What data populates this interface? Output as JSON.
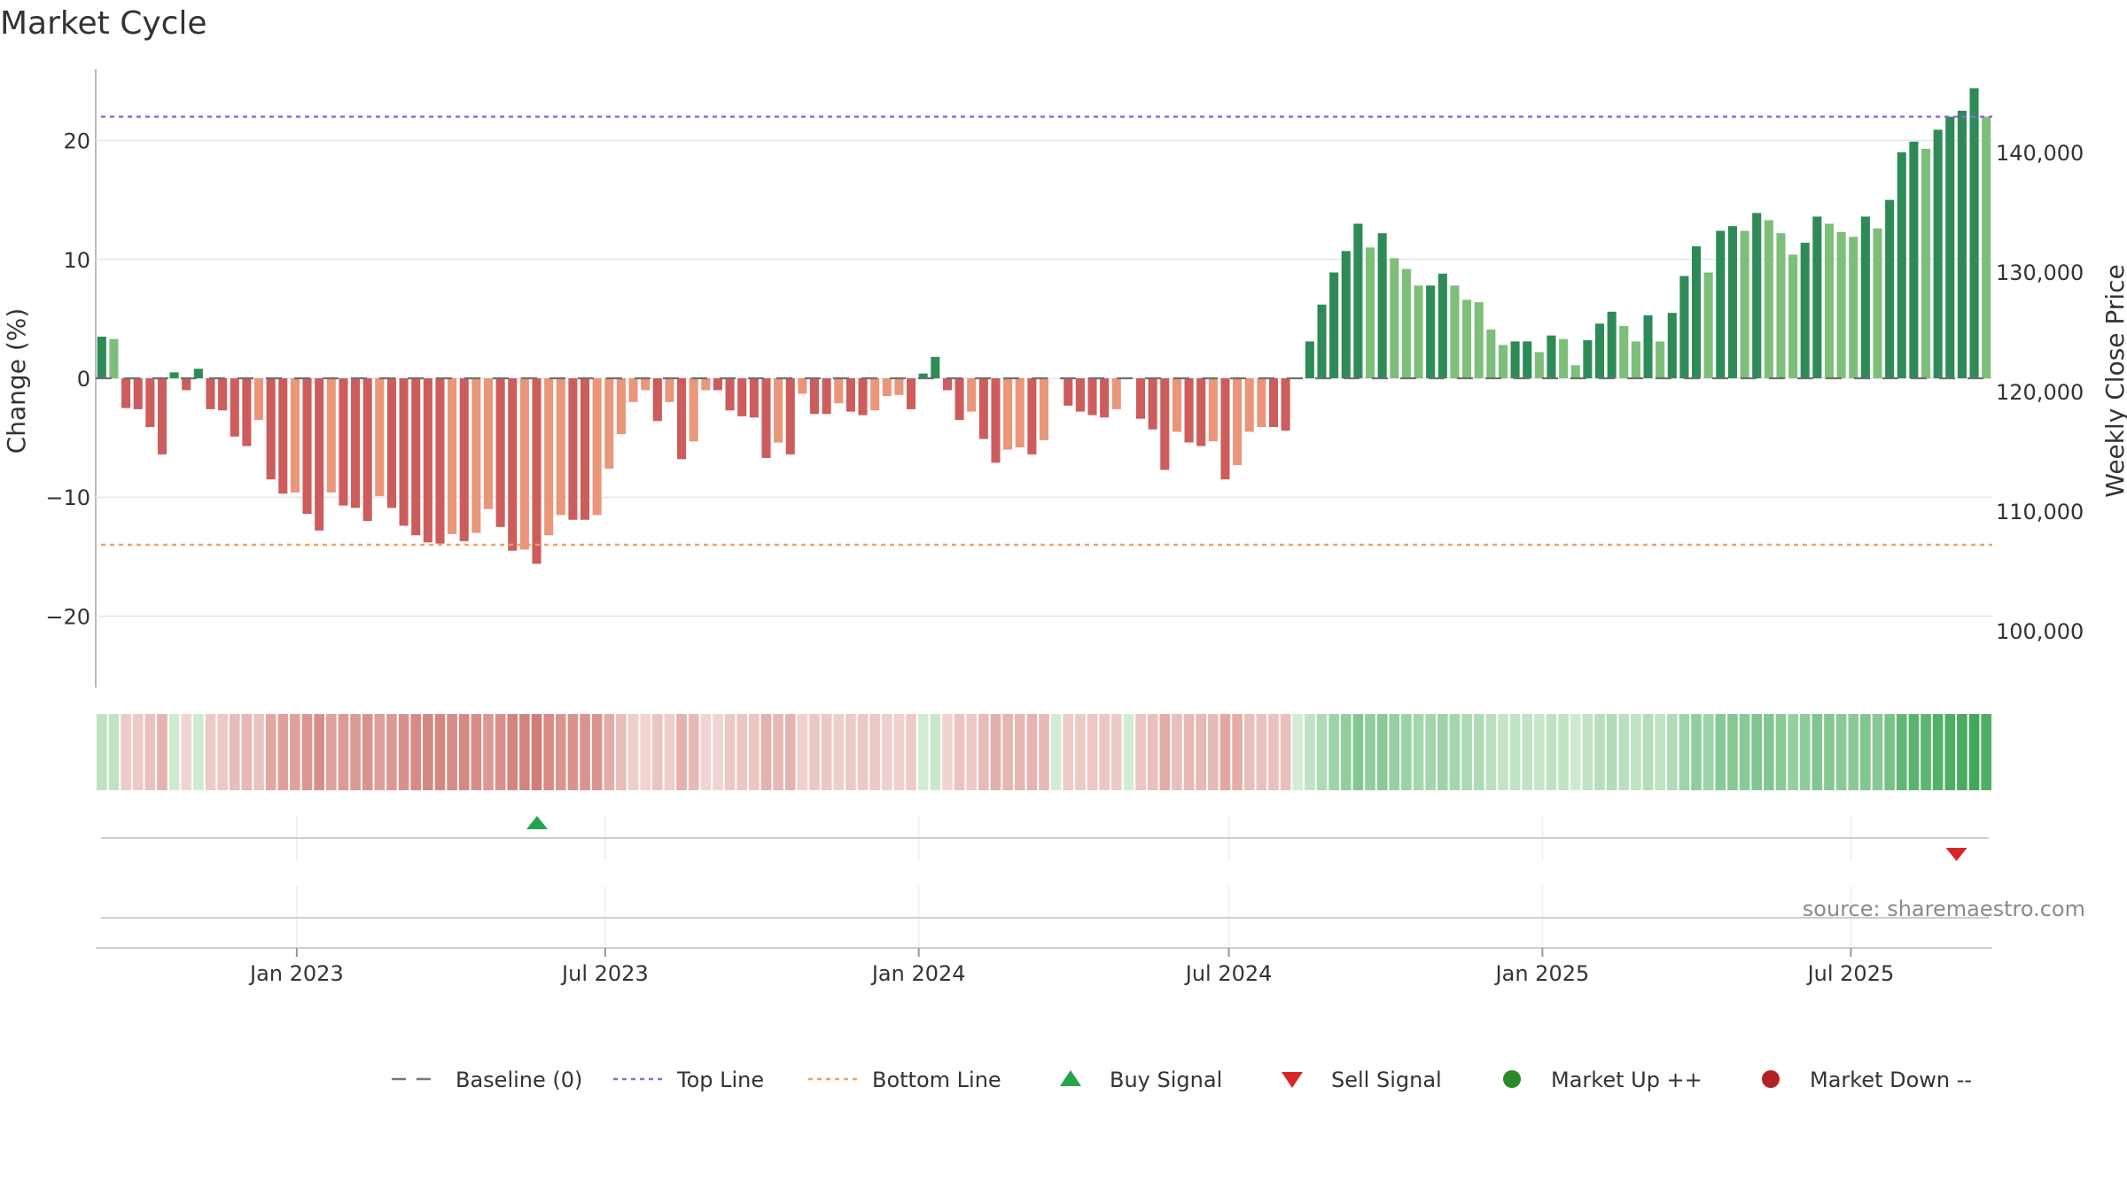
{
  "title": "Market Cycle",
  "source": "source: sharemaestro.com",
  "chart_data": {
    "type": "bar",
    "title": "Market Cycle",
    "x_start": "2022-09-05",
    "x_end": "2025-09-22",
    "x_ticks": [
      {
        "date": "2023-01-01",
        "label": "Jan 2023"
      },
      {
        "date": "2023-07-01",
        "label": "Jul 2023"
      },
      {
        "date": "2024-01-01",
        "label": "Jan 2024"
      },
      {
        "date": "2024-07-01",
        "label": "Jul 2024"
      },
      {
        "date": "2025-01-01",
        "label": "Jan 2025"
      },
      {
        "date": "2025-07-01",
        "label": "Jul 2025"
      }
    ],
    "y_left": {
      "label": "Change (%)",
      "lim": [
        -26,
        26
      ],
      "ticks": [
        20,
        10,
        0,
        -10,
        -20
      ],
      "tick_labels": [
        "20",
        "10",
        "0",
        "−10",
        "−20"
      ]
    },
    "y_right": {
      "label": "Weekly Close Price",
      "ticks": [
        140000,
        130000,
        120000,
        110000,
        100000
      ],
      "tick_labels": [
        "140,000",
        "130,000",
        "120,000",
        "110,000",
        "100,000"
      ]
    },
    "top_line": 22,
    "bottom_line": -14,
    "grid": true,
    "series": [
      {
        "name": "Change",
        "values": [
          3.5,
          3.3,
          -2.5,
          -2.6,
          -4.1,
          -6.4,
          0.5,
          -1.0,
          0.8,
          -2.6,
          -2.7,
          -4.9,
          -5.7,
          -3.5,
          -8.5,
          -9.7,
          -9.6,
          -11.4,
          -12.8,
          -9.6,
          -10.7,
          -10.9,
          -12.0,
          -9.9,
          -10.9,
          -12.4,
          -13.2,
          -13.8,
          -13.9,
          -13.1,
          -13.7,
          -13.0,
          -11.0,
          -12.5,
          -14.5,
          -14.4,
          -15.6,
          -13.2,
          -11.5,
          -11.9,
          -11.9,
          -11.5,
          -7.6,
          -4.7,
          -2.0,
          -1.0,
          -3.6,
          -2.0,
          -6.8,
          -5.3,
          -1.0,
          -1.0,
          -2.7,
          -3.2,
          -3.3,
          -6.7,
          -5.4,
          -6.4,
          -1.3,
          -3.0,
          -3.0,
          -2.1,
          -2.8,
          -3.1,
          -2.7,
          -1.5,
          -1.4,
          -2.6,
          0.4,
          1.8,
          -1.0,
          -3.5,
          -2.8,
          -5.1,
          -7.1,
          -6.0,
          -5.8,
          -6.4,
          -5.2,
          0,
          -2.3,
          -2.8,
          -3.1,
          -3.3,
          -2.6,
          0,
          -3.4,
          -4.3,
          -7.7,
          -4.5,
          -5.4,
          -5.7,
          -5.3,
          -8.5,
          -7.3,
          -4.5,
          -4.1,
          -4.1,
          -4.4,
          0,
          3.1,
          6.2,
          8.9,
          10.7,
          13.0,
          11.0,
          12.2,
          10.1,
          9.2,
          7.8,
          7.8,
          8.8,
          7.8,
          6.6,
          6.4,
          4.1,
          2.8,
          3.1,
          3.1,
          2.2,
          3.6,
          3.3,
          1.1,
          3.2,
          4.6,
          5.6,
          4.4,
          3.1,
          5.3,
          3.1,
          5.5,
          8.6,
          11.1,
          8.9,
          12.4,
          12.8,
          12.4,
          13.9,
          13.3,
          12.2,
          10.4,
          11.4,
          13.6,
          13.0,
          12.3,
          11.9,
          13.6,
          12.6,
          15.0,
          19.0,
          19.9,
          19.3,
          20.9,
          22.0,
          22.5,
          24.4,
          22.0
        ]
      }
    ],
    "buy_signals": [
      "2023-05-22"
    ],
    "sell_signals": [
      "2025-09-01"
    ],
    "legend": {
      "position": "bottom-center",
      "items": [
        {
          "key": "baseline",
          "label": "Baseline (0)",
          "color": "#777777"
        },
        {
          "key": "top",
          "label": "Top Line",
          "color": "#9467e6"
        },
        {
          "key": "bottom",
          "label": "Bottom Line",
          "color": "#f2a060"
        },
        {
          "key": "buy",
          "label": "Buy Signal",
          "color": "#27a34b"
        },
        {
          "key": "sell",
          "label": "Sell Signal",
          "color": "#d62728"
        },
        {
          "key": "up",
          "label": "Market Up ++",
          "color": "#2a8a2a"
        },
        {
          "key": "down",
          "label": "Market Down --",
          "color": "#b22222"
        }
      ]
    }
  },
  "colors": {
    "pos_dark": "#2e8b57",
    "pos_light": "#7dbf7a",
    "neg_dark": "#cd5c5c",
    "neg_light": "#e9967a",
    "grid": "#e6e6e6",
    "axis": "#bbbbbb"
  }
}
